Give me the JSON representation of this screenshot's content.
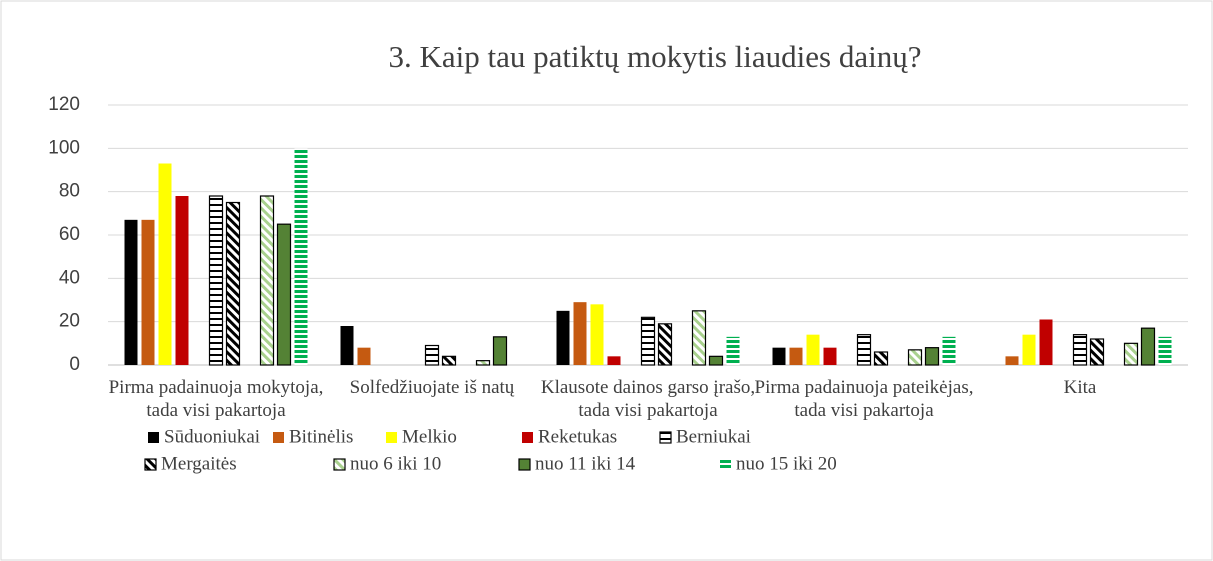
{
  "chart_data": {
    "type": "bar",
    "title": "3. Kaip tau patiktų mokytis liaudies dainų?",
    "categories": [
      "Pirma padainuoja mokytoja, tada visi pakartoja",
      "Solfedžiuojate iš natų",
      "Klausote dainos garso įrašo, tada visi pakartoja",
      "Pirma padainuoja pateikėjas, tada visi pakartoja",
      "Kita"
    ],
    "series": [
      {
        "name": "Sūduoniukai",
        "color": "#000000",
        "pattern": "solid",
        "values": [
          67,
          18,
          25,
          8,
          0
        ]
      },
      {
        "name": "Bitinėlis",
        "color": "#c55a11",
        "pattern": "solid",
        "values": [
          67,
          8,
          29,
          8,
          4
        ]
      },
      {
        "name": "Melkio",
        "color": "#ffff00",
        "pattern": "solid",
        "values": [
          93,
          0,
          28,
          14,
          14
        ]
      },
      {
        "name": "Reketukas",
        "color": "#c00000",
        "pattern": "solid",
        "values": [
          78,
          0,
          4,
          8,
          21
        ]
      },
      {
        "name": "Berniukai",
        "color": "#000000",
        "pattern": "horizontal-stripes",
        "values": [
          78,
          9,
          22,
          14,
          14
        ]
      },
      {
        "name": "Mergaitės",
        "color": "#000000",
        "pattern": "diagonal-stripes",
        "values": [
          75,
          4,
          19,
          6,
          12
        ]
      },
      {
        "name": "nuo 6 iki 10",
        "color": "#a9d18e",
        "pattern": "diagonal-stripes",
        "values": [
          78,
          2,
          25,
          7,
          10
        ]
      },
      {
        "name": "nuo 11 iki 14",
        "color": "#548235",
        "pattern": "outlined",
        "values": [
          65,
          13,
          4,
          8,
          17
        ]
      },
      {
        "name": "nuo 15 iki 20",
        "color": "#00b050",
        "pattern": "dashes",
        "values": [
          100,
          0,
          13,
          13,
          13
        ]
      }
    ],
    "ylim": [
      0,
      120
    ],
    "yticks": [
      0,
      20,
      40,
      60,
      80,
      100,
      120
    ],
    "grid": true,
    "legend": "bottom"
  }
}
